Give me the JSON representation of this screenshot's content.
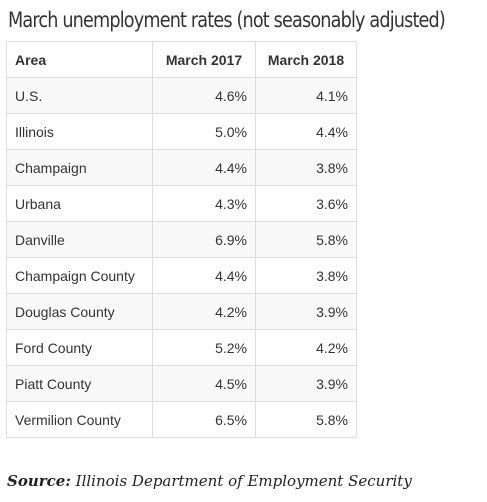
{
  "title": "March unemployment rates (not seasonably adjusted)",
  "table": {
    "headers": [
      "Area",
      "March 2017",
      "March 2018"
    ],
    "rows": [
      [
        "U.S.",
        "4.6%",
        "4.1%"
      ],
      [
        "Illinois",
        "5.0%",
        "4.4%"
      ],
      [
        "Champaign",
        "4.4%",
        "3.8%"
      ],
      [
        "Urbana",
        "4.3%",
        "3.6%"
      ],
      [
        "Danville",
        "6.9%",
        "5.8%"
      ],
      [
        "Champaign County",
        "4.4%",
        "3.8%"
      ],
      [
        "Douglas County",
        "4.2%",
        "3.9%"
      ],
      [
        "Ford County",
        "5.2%",
        "4.2%"
      ],
      [
        "Piatt County",
        "4.5%",
        "3.9%"
      ],
      [
        "Vermilion County",
        "6.5%",
        "5.8%"
      ]
    ]
  },
  "source": {
    "label": "Source:",
    "text": " Illinois Department of Employment Security"
  }
}
